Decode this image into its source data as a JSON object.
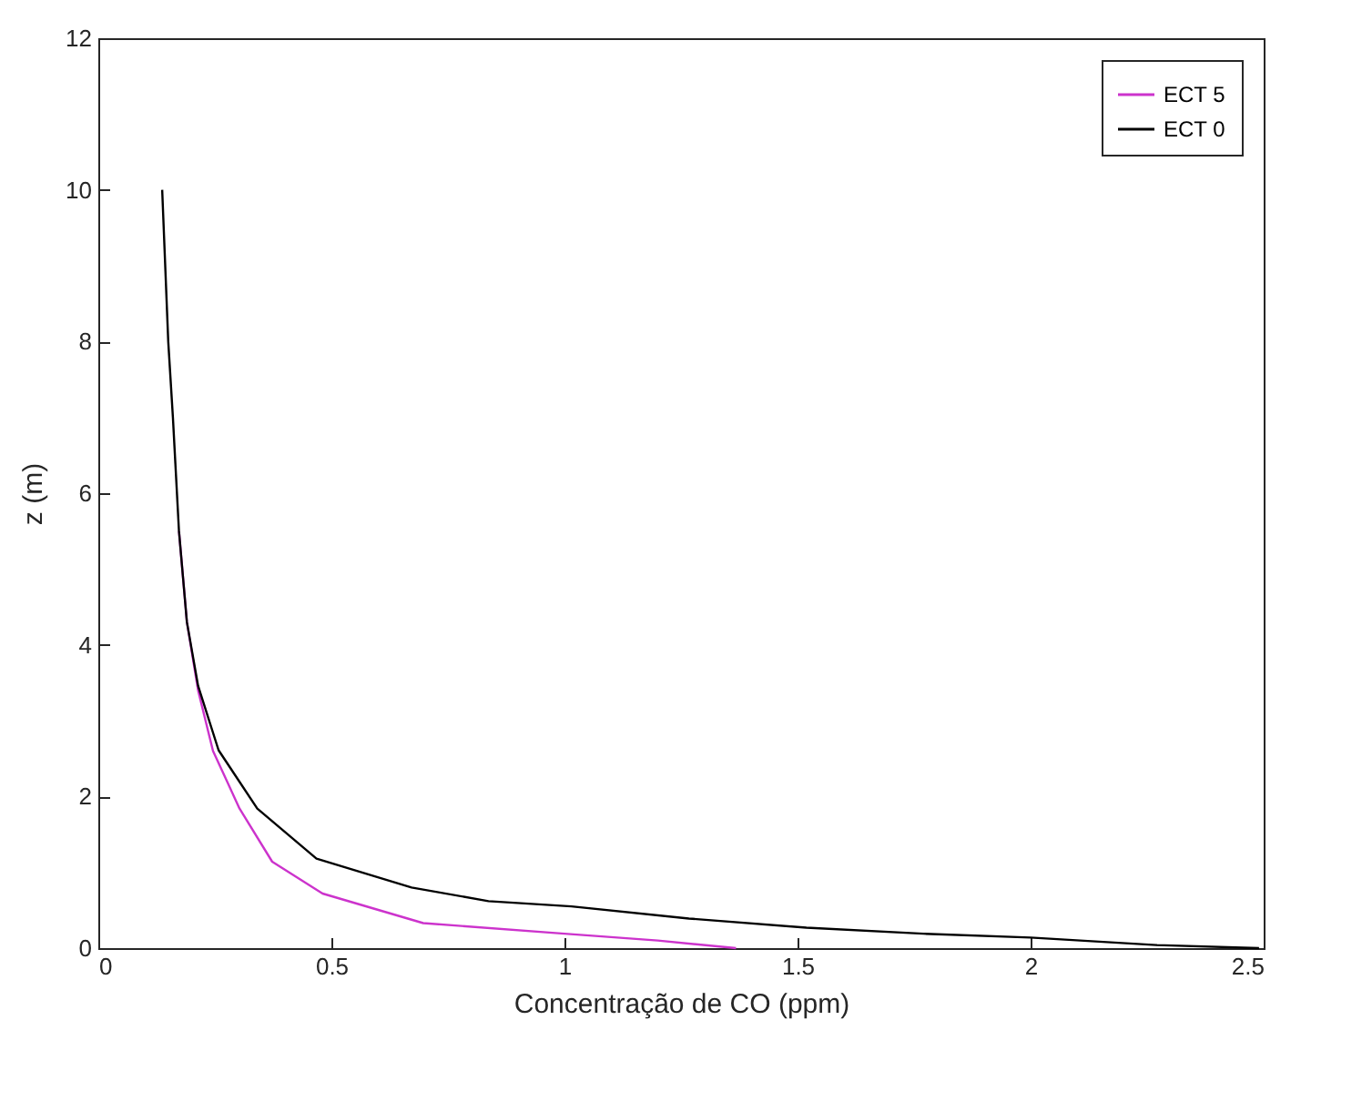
{
  "chart_data": {
    "type": "line",
    "xlabel": "Concentração de CO (ppm)",
    "ylabel": "z (m)",
    "xlim": [
      0,
      2.5
    ],
    "xticks": [
      0,
      0.5,
      1,
      1.5,
      2,
      2.5
    ],
    "ylim": [
      0,
      12
    ],
    "yticks": [
      0,
      2,
      4,
      6,
      8,
      10,
      12
    ],
    "grid": false,
    "legend": "top right",
    "series": [
      {
        "name": "ECT 5",
        "color": "#cc33cc",
        "x": [
          0.173,
          0.19,
          0.214,
          0.246,
          0.303,
          0.373,
          0.481,
          0.697,
          1.0,
          1.2,
          1.368
        ],
        "values": [
          5.5,
          4.3,
          3.4,
          2.6,
          1.84,
          1.14,
          0.72,
          0.33,
          0.19,
          0.1,
          0
        ]
      },
      {
        "name": "ECT 0",
        "color": "#000000",
        "x": [
          0.137,
          0.15,
          0.16,
          0.173,
          0.19,
          0.214,
          0.258,
          0.341,
          0.468,
          0.672,
          0.837,
          1.015,
          1.267,
          1.519,
          1.77,
          2.0,
          2.27,
          2.49
        ],
        "values": [
          10,
          8,
          7,
          5.5,
          4.3,
          3.46,
          2.61,
          1.84,
          1.18,
          0.8,
          0.62,
          0.55,
          0.39,
          0.27,
          0.19,
          0.14,
          0.04,
          0
        ]
      }
    ]
  }
}
